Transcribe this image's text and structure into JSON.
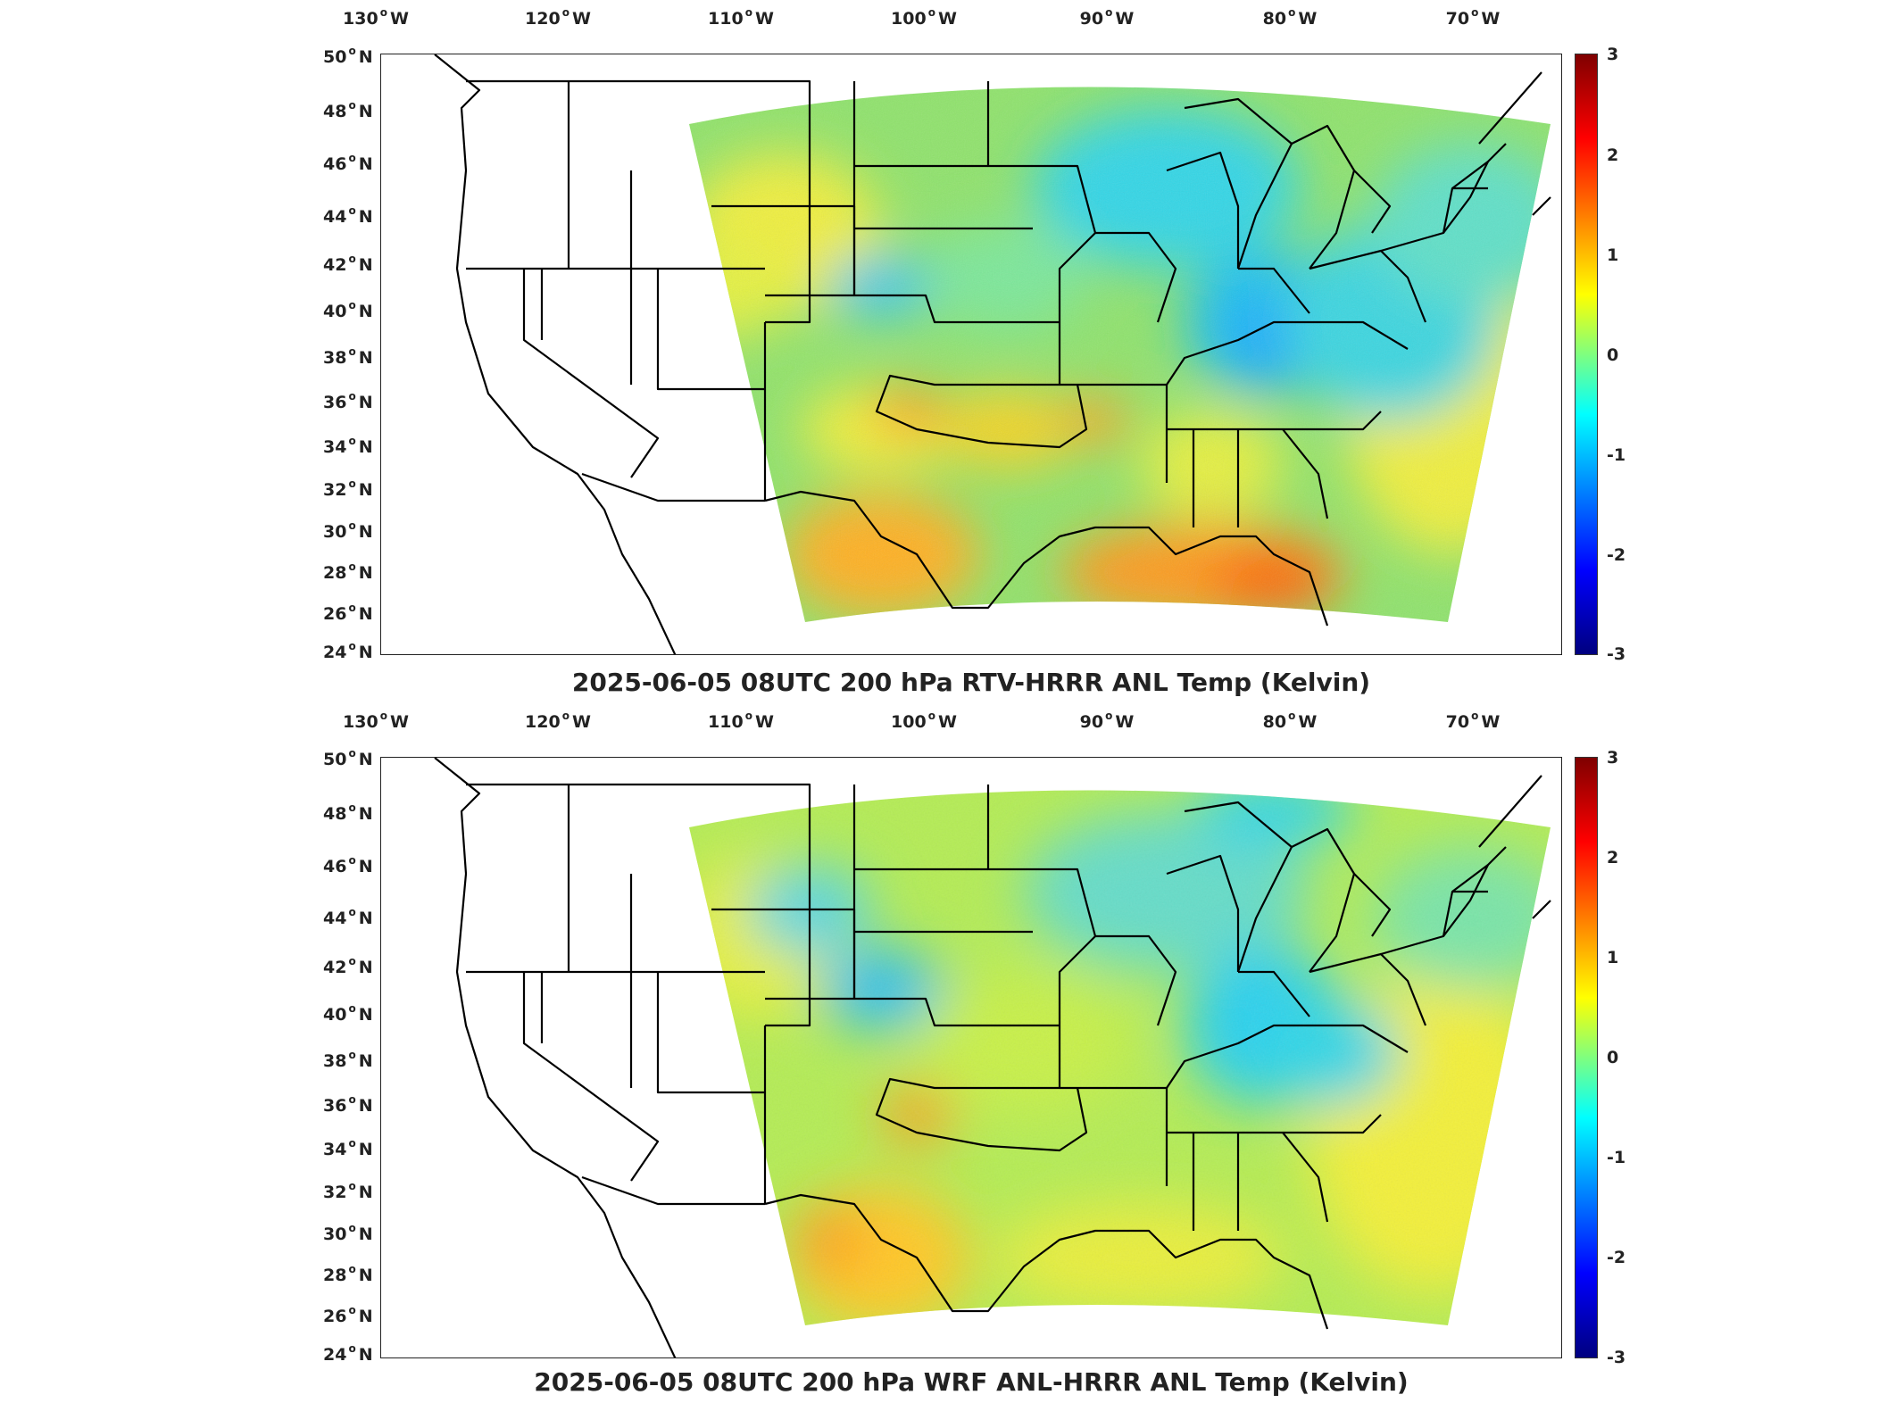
{
  "longitude_labels": [
    "130",
    "120",
    "110",
    "100",
    "90",
    "80",
    "70"
  ],
  "longitude_hemisphere": "W",
  "latitude_labels": [
    "50",
    "48",
    "46",
    "44",
    "42",
    "40",
    "38",
    "36",
    "34",
    "32",
    "30",
    "28",
    "26",
    "24"
  ],
  "latitude_hemisphere": "N",
  "colorbar": {
    "ticks": [
      "3",
      "2",
      "1",
      "0",
      "-1",
      "-2",
      "-3"
    ],
    "range": [
      -3,
      3
    ],
    "colormap": [
      "#7f0000",
      "#ff0000",
      "#ff7f00",
      "#ffff00",
      "#7fff7f",
      "#00ffff",
      "#007fff",
      "#0000ff",
      "#00007f"
    ]
  },
  "panels": [
    {
      "title": "2025-06-05 08UTC 200 hPa RTV-HRRR ANL Temp (Kelvin)"
    },
    {
      "title": "2025-06-05 08UTC 200 hPa WRF ANL-HRRR ANL Temp (Kelvin)"
    }
  ],
  "colors": {
    "domain_base": "#8fe06f",
    "warm": "#f0f03a",
    "hot": "#ff9a1a",
    "cool": "#33d6e6",
    "cold": "#1aa6ff",
    "border": "#000000"
  }
}
